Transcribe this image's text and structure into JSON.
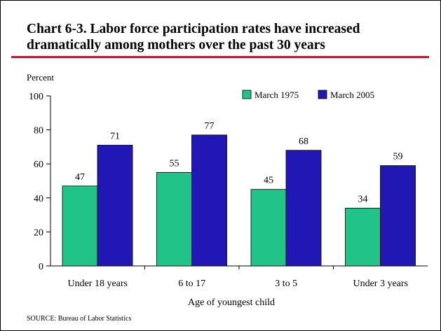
{
  "header": {
    "title_line1": "Chart 6-3.  Labor force participation rates have increased",
    "title_line2": "dramatically among mothers over the past 30 years"
  },
  "footer": {
    "source": "SOURCE:  Bureau of Labor Statistics"
  },
  "colors": {
    "rule": "#b5202e",
    "series_1975": "#22c389",
    "series_2005": "#2117b5"
  },
  "chart_data": {
    "type": "bar",
    "title": "Chart 6-3.  Labor force participation rates have increased dramatically among mothers over the past 30 years",
    "ylabel": "Percent",
    "xlabel": "Age of youngest child",
    "ylim": [
      0,
      100
    ],
    "yticks": [
      0,
      20,
      40,
      60,
      80,
      100
    ],
    "grid": false,
    "legend_position": "top-right",
    "categories": [
      "Under 18 years",
      "6 to 17",
      "3 to 5",
      "Under 3 years"
    ],
    "series": [
      {
        "name": "March 1975",
        "color": "#22c389",
        "values": [
          47,
          55,
          45,
          34
        ]
      },
      {
        "name": "March 2005",
        "color": "#2117b5",
        "values": [
          71,
          77,
          68,
          59
        ]
      }
    ]
  }
}
